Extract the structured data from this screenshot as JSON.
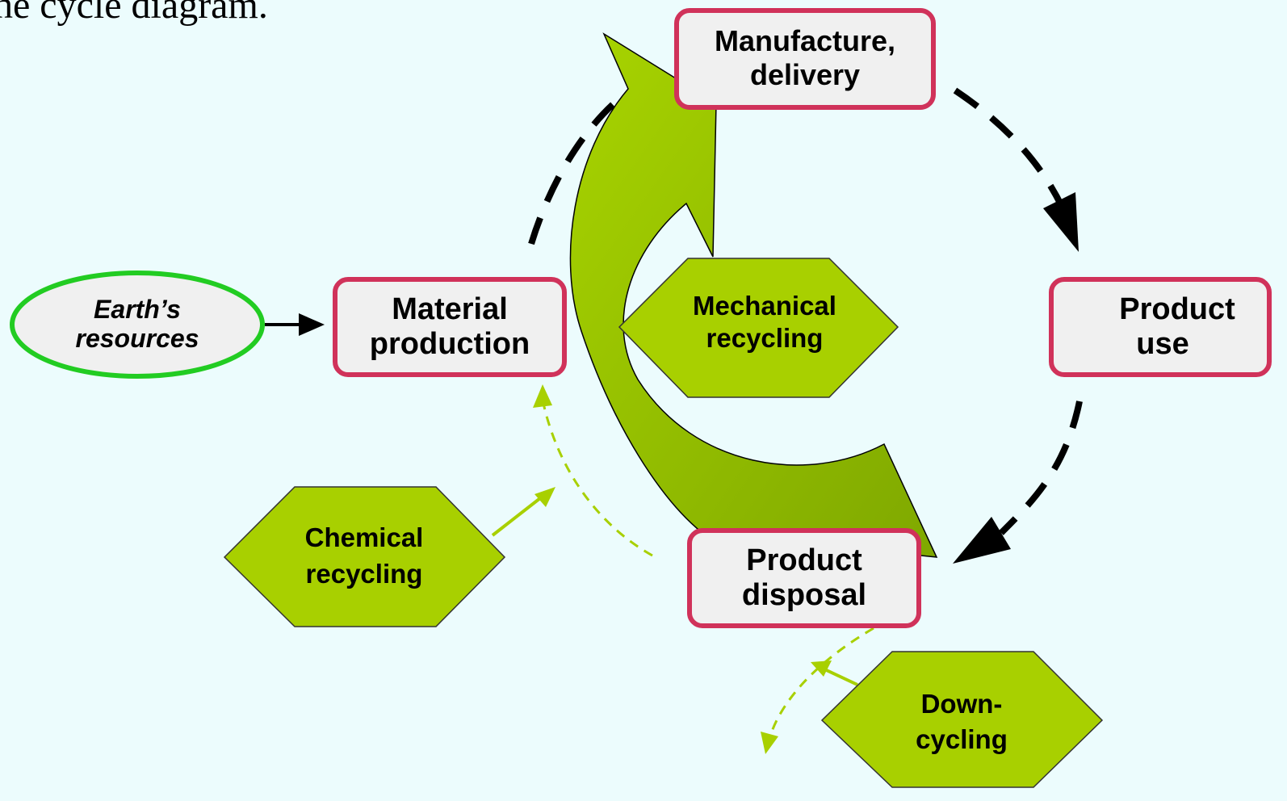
{
  "heading": "he cycle diagram.",
  "nodes": [
    {
      "lines": [
        "Manufacture,",
        "delivery"
      ]
    },
    {
      "lines": [
        "Product",
        "use"
      ]
    },
    {
      "lines": [
        "Product",
        "disposal"
      ]
    },
    {
      "lines": [
        "Material",
        "production"
      ]
    },
    {
      "lines": [
        "Earth’s",
        "resources"
      ]
    },
    {
      "lines": [
        "Mechanical",
        "recycling"
      ]
    },
    {
      "lines": [
        "Chemical",
        "recycling"
      ]
    },
    {
      "lines": [
        "Down-",
        "cycling"
      ]
    }
  ]
}
